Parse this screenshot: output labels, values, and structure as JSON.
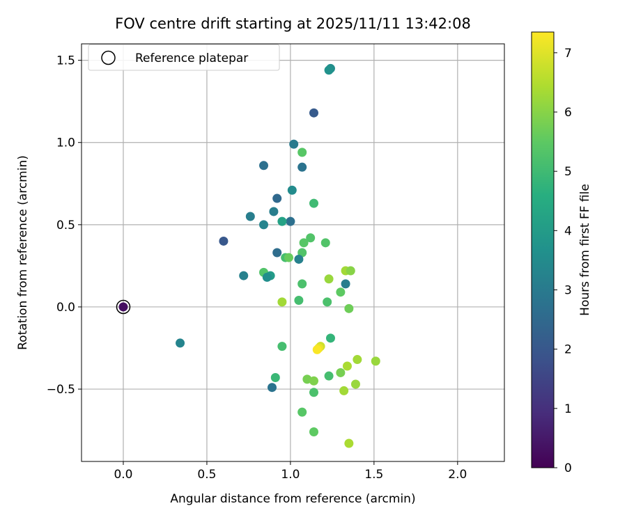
{
  "chart_data": {
    "type": "scatter",
    "title": "FOV centre drift starting at 2025/11/11 13:42:08",
    "xlabel": "Angular distance from reference (arcmin)",
    "ylabel": "Rotation from reference (arcmin)",
    "xlim": [
      -0.25,
      2.28
    ],
    "ylim": [
      -0.94,
      1.6
    ],
    "x_ticks": [
      0.0,
      0.5,
      1.0,
      1.5,
      2.0
    ],
    "x_tick_labels": [
      "0.0",
      "0.5",
      "1.0",
      "1.5",
      "2.0"
    ],
    "y_ticks": [
      -0.5,
      0.0,
      0.5,
      1.0,
      1.5
    ],
    "y_tick_labels": [
      "−0.5",
      "0.0",
      "0.5",
      "1.0",
      "1.5"
    ],
    "grid": true,
    "legend": {
      "position": "top-left",
      "label": "Reference platepar"
    },
    "reference_point": {
      "x": 0.0,
      "y": 0.0,
      "hours": 0.0
    },
    "colorbar": {
      "label": "Hours from first FF file",
      "range": [
        0,
        7.35
      ],
      "ticks": [
        0,
        1,
        2,
        3,
        4,
        5,
        6,
        7
      ],
      "tick_labels": [
        "0",
        "1",
        "2",
        "3",
        "4",
        "5",
        "6",
        "7"
      ],
      "colormap": "viridis"
    },
    "points": [
      {
        "x": 0.0,
        "y": 0.0,
        "hours": 0.3
      },
      {
        "x": 1.24,
        "y": 1.45,
        "hours": 3.6
      },
      {
        "x": 1.23,
        "y": 1.44,
        "hours": 3.7
      },
      {
        "x": 1.14,
        "y": 1.18,
        "hours": 2.1
      },
      {
        "x": 1.02,
        "y": 0.99,
        "hours": 3.0
      },
      {
        "x": 1.07,
        "y": 0.94,
        "hours": 5.4
      },
      {
        "x": 0.84,
        "y": 0.86,
        "hours": 2.7
      },
      {
        "x": 1.07,
        "y": 0.85,
        "hours": 2.8
      },
      {
        "x": 1.01,
        "y": 0.71,
        "hours": 3.5
      },
      {
        "x": 0.92,
        "y": 0.66,
        "hours": 2.5
      },
      {
        "x": 1.14,
        "y": 0.63,
        "hours": 5.0
      },
      {
        "x": 0.9,
        "y": 0.58,
        "hours": 3.1
      },
      {
        "x": 0.76,
        "y": 0.55,
        "hours": 3.1
      },
      {
        "x": 1.0,
        "y": 0.52,
        "hours": 2.7
      },
      {
        "x": 0.95,
        "y": 0.52,
        "hours": 4.2
      },
      {
        "x": 0.84,
        "y": 0.5,
        "hours": 3.3
      },
      {
        "x": 1.12,
        "y": 0.42,
        "hours": 5.3
      },
      {
        "x": 0.6,
        "y": 0.4,
        "hours": 2.0
      },
      {
        "x": 1.08,
        "y": 0.39,
        "hours": 5.4
      },
      {
        "x": 1.21,
        "y": 0.39,
        "hours": 5.3
      },
      {
        "x": 1.07,
        "y": 0.33,
        "hours": 5.3
      },
      {
        "x": 0.92,
        "y": 0.33,
        "hours": 2.6
      },
      {
        "x": 0.97,
        "y": 0.3,
        "hours": 5.1
      },
      {
        "x": 0.99,
        "y": 0.3,
        "hours": 5.6
      },
      {
        "x": 1.05,
        "y": 0.29,
        "hours": 3.2
      },
      {
        "x": 1.33,
        "y": 0.22,
        "hours": 6.3
      },
      {
        "x": 1.36,
        "y": 0.22,
        "hours": 6.0
      },
      {
        "x": 0.84,
        "y": 0.21,
        "hours": 5.3
      },
      {
        "x": 0.72,
        "y": 0.19,
        "hours": 3.2
      },
      {
        "x": 0.88,
        "y": 0.19,
        "hours": 4.0
      },
      {
        "x": 0.86,
        "y": 0.18,
        "hours": 3.6
      },
      {
        "x": 1.23,
        "y": 0.17,
        "hours": 6.2
      },
      {
        "x": 1.07,
        "y": 0.14,
        "hours": 5.2
      },
      {
        "x": 1.33,
        "y": 0.14,
        "hours": 3.1
      },
      {
        "x": 1.3,
        "y": 0.09,
        "hours": 5.5
      },
      {
        "x": 0.95,
        "y": 0.03,
        "hours": 6.3
      },
      {
        "x": 1.05,
        "y": 0.04,
        "hours": 5.1
      },
      {
        "x": 1.22,
        "y": 0.03,
        "hours": 5.2
      },
      {
        "x": 1.35,
        "y": -0.01,
        "hours": 5.7
      },
      {
        "x": 0.34,
        "y": -0.22,
        "hours": 3.3
      },
      {
        "x": 1.24,
        "y": -0.19,
        "hours": 4.8
      },
      {
        "x": 0.95,
        "y": -0.24,
        "hours": 5.1
      },
      {
        "x": 1.18,
        "y": -0.24,
        "hours": 6.8
      },
      {
        "x": 1.17,
        "y": -0.25,
        "hours": 7.1
      },
      {
        "x": 1.16,
        "y": -0.26,
        "hours": 7.3
      },
      {
        "x": 1.4,
        "y": -0.32,
        "hours": 6.3
      },
      {
        "x": 1.51,
        "y": -0.33,
        "hours": 6.2
      },
      {
        "x": 1.34,
        "y": -0.36,
        "hours": 6.4
      },
      {
        "x": 1.3,
        "y": -0.4,
        "hours": 5.8
      },
      {
        "x": 1.23,
        "y": -0.42,
        "hours": 5.1
      },
      {
        "x": 0.91,
        "y": -0.43,
        "hours": 4.9
      },
      {
        "x": 1.1,
        "y": -0.44,
        "hours": 5.8
      },
      {
        "x": 1.14,
        "y": -0.45,
        "hours": 5.9
      },
      {
        "x": 1.39,
        "y": -0.47,
        "hours": 6.2
      },
      {
        "x": 0.89,
        "y": -0.49,
        "hours": 2.8
      },
      {
        "x": 1.14,
        "y": -0.52,
        "hours": 5.2
      },
      {
        "x": 1.32,
        "y": -0.51,
        "hours": 6.3
      },
      {
        "x": 1.07,
        "y": -0.64,
        "hours": 5.4
      },
      {
        "x": 1.14,
        "y": -0.76,
        "hours": 5.5
      },
      {
        "x": 1.35,
        "y": -0.83,
        "hours": 6.4
      }
    ]
  }
}
